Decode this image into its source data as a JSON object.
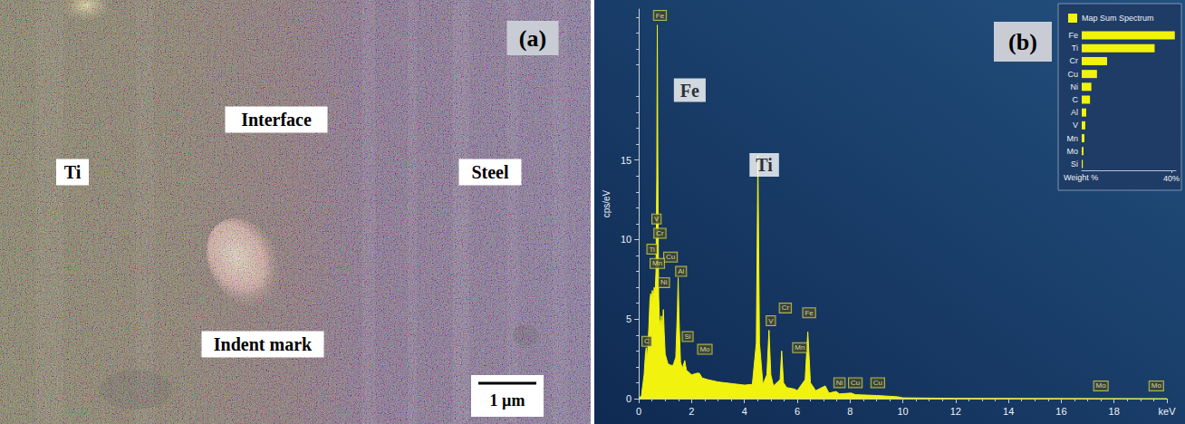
{
  "panel_a": {
    "panel": "(a)",
    "labels": [
      "Ti",
      "Interface",
      "Steel",
      "Indent mark"
    ],
    "scale_bar": "1 µm"
  },
  "chart_data": [
    {
      "type": "area",
      "panel": "(b)",
      "color": "#f2f20f",
      "grid": false,
      "x": [
        0,
        0.1,
        0.2,
        0.25,
        0.28,
        0.32,
        0.38,
        0.42,
        0.45,
        0.48,
        0.51,
        0.55,
        0.58,
        0.62,
        0.65,
        0.68,
        0.7,
        0.72,
        0.75,
        0.78,
        0.82,
        0.85,
        0.88,
        0.91,
        0.93,
        0.96,
        1.0,
        1.1,
        1.2,
        1.3,
        1.4,
        1.46,
        1.49,
        1.52,
        1.58,
        1.65,
        1.74,
        1.8,
        2.0,
        2.2,
        2.29,
        2.4,
        2.6,
        3.0,
        3.5,
        4.0,
        4.3,
        4.45,
        4.51,
        4.57,
        4.7,
        4.85,
        4.93,
        5.0,
        5.1,
        5.35,
        5.41,
        5.48,
        5.6,
        5.9,
        6.0,
        6.3,
        6.4,
        6.5,
        6.7,
        7.06,
        7.2,
        7.47,
        7.6,
        8.04,
        8.2,
        9.0,
        9.8,
        10.0,
        12.0,
        20.0
      ],
      "values": [
        0,
        0.2,
        1.5,
        2.8,
        3.2,
        2.5,
        4.5,
        6.2,
        6.6,
        6.0,
        6.8,
        6.3,
        7.0,
        6.8,
        8.0,
        14,
        23.5,
        15,
        6.5,
        5.0,
        4.6,
        5.2,
        4.4,
        5.0,
        5.6,
        4.2,
        2.8,
        2.2,
        2.1,
        2.1,
        2.6,
        5.5,
        7.6,
        5.2,
        2.3,
        1.9,
        2.4,
        1.8,
        1.5,
        1.6,
        1.6,
        1.3,
        1.2,
        1.05,
        0.95,
        0.85,
        0.9,
        3.5,
        15.3,
        3.5,
        0.9,
        1.5,
        4.3,
        1.5,
        0.8,
        1.2,
        3.0,
        1.0,
        0.7,
        0.6,
        0.5,
        1.2,
        4.2,
        1.0,
        0.5,
        0.8,
        0.35,
        0.45,
        0.3,
        0.35,
        0.25,
        0.2,
        0.12,
        0.05,
        0.02,
        0
      ],
      "xlim": [
        0,
        20
      ],
      "xticks": [
        0,
        2,
        4,
        6,
        8,
        10,
        12,
        14,
        16,
        18,
        {
          "value": 20,
          "label": "keV"
        }
      ],
      "ylim": [
        0,
        24.5
      ],
      "yticks": [
        0,
        5,
        10,
        15
      ],
      "y_label": "cps/eV",
      "peak_labels": [
        {
          "label": "Fe",
          "x": 0.8,
          "y": 24.1
        },
        {
          "label": "V",
          "x": 0.67,
          "y": 11.3
        },
        {
          "label": "Cr",
          "x": 0.8,
          "y": 10.4
        },
        {
          "label": "Ti",
          "x": 0.5,
          "y": 9.4
        },
        {
          "label": "Cu",
          "x": 1.2,
          "y": 8.9
        },
        {
          "label": "Mn",
          "x": 0.7,
          "y": 8.5
        },
        {
          "label": "Ni",
          "x": 0.95,
          "y": 7.3
        },
        {
          "label": "C",
          "x": 0.3,
          "y": 3.6
        },
        {
          "label": "Al",
          "x": 1.6,
          "y": 8.0
        },
        {
          "label": "Si",
          "x": 1.85,
          "y": 3.9
        },
        {
          "label": "Mo",
          "x": 2.5,
          "y": 3.1
        },
        {
          "label": "V",
          "x": 5.0,
          "y": 4.9
        },
        {
          "label": "Cr",
          "x": 5.55,
          "y": 5.7
        },
        {
          "label": "Mn",
          "x": 6.1,
          "y": 3.2
        },
        {
          "label": "Fe",
          "x": 6.45,
          "y": 5.4
        },
        {
          "label": "Ni",
          "x": 7.6,
          "y": 1.0
        },
        {
          "label": "Cu",
          "x": 8.2,
          "y": 1.0
        },
        {
          "label": "Cu",
          "x": 9.05,
          "y": 1.0
        },
        {
          "label": "Mo",
          "x": 17.5,
          "y": 0.8
        },
        {
          "label": "Mo",
          "x": 19.6,
          "y": 0.8
        }
      ],
      "annotations": [
        {
          "text": "Fe",
          "x": 1.93,
          "y": 19.4
        },
        {
          "text": "Ti",
          "x": 4.75,
          "y": 14.7
        }
      ]
    },
    {
      "type": "bar",
      "orientation": "horizontal",
      "legend": "top",
      "grid": false,
      "categories": [
        "Fe",
        "Ti",
        "Cr",
        "Cu",
        "Ni",
        "C",
        "Al",
        "V",
        "Mn",
        "Mo",
        "Si"
      ],
      "series": [
        {
          "name": "Map Sum Spectrum",
          "color": "#f2f20f",
          "values": [
            41.5,
            32.5,
            11.3,
            6.8,
            4.3,
            3.7,
            2.0,
            1.6,
            1.2,
            0.8,
            0.5
          ]
        }
      ],
      "xlim": [
        0,
        42
      ],
      "xticks": [
        {
          "value": 40,
          "label": "40%"
        }
      ],
      "x_label": "Weight %"
    }
  ]
}
